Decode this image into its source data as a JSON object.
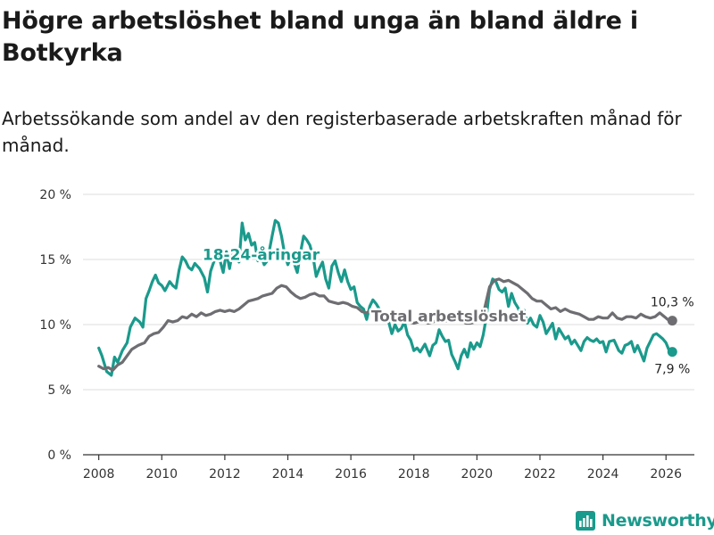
{
  "chart_data": {
    "type": "line",
    "title": "Högre arbetslöshet bland unga än bland äldre i Botkyrka",
    "subtitle": "Arbetssökande som andel av den registerbaserade arbetskraften månad för månad.",
    "ylim": [
      0,
      20
    ],
    "xlim": [
      2007.5,
      2026.9
    ],
    "y_ticks": [
      0,
      5,
      10,
      15,
      20
    ],
    "y_tick_labels": [
      "0 %",
      "5 %",
      "10 %",
      "15 %",
      "20 %"
    ],
    "x_ticks": [
      2008,
      2010,
      2012,
      2014,
      2016,
      2018,
      2020,
      2022,
      2024,
      2026
    ],
    "x_tick_labels": [
      "2008",
      "2010",
      "2012",
      "2014",
      "2016",
      "2018",
      "2020",
      "2022",
      "2024",
      "2026"
    ],
    "series": [
      {
        "name": "18-24-åringar",
        "color": "#1a9a8c",
        "points": [
          [
            2008.0,
            8.2
          ],
          [
            2008.1,
            7.6
          ],
          [
            2008.25,
            6.4
          ],
          [
            2008.4,
            6.1
          ],
          [
            2008.5,
            7.5
          ],
          [
            2008.6,
            7.1
          ],
          [
            2008.75,
            8.0
          ],
          [
            2008.9,
            8.6
          ],
          [
            2009.0,
            9.8
          ],
          [
            2009.15,
            10.5
          ],
          [
            2009.3,
            10.2
          ],
          [
            2009.4,
            9.8
          ],
          [
            2009.5,
            12.0
          ],
          [
            2009.6,
            12.6
          ],
          [
            2009.7,
            13.3
          ],
          [
            2009.8,
            13.8
          ],
          [
            2009.9,
            13.2
          ],
          [
            2010.0,
            13.0
          ],
          [
            2010.1,
            12.6
          ],
          [
            2010.25,
            13.3
          ],
          [
            2010.35,
            13.0
          ],
          [
            2010.45,
            12.8
          ],
          [
            2010.55,
            14.2
          ],
          [
            2010.65,
            15.2
          ],
          [
            2010.75,
            14.9
          ],
          [
            2010.85,
            14.4
          ],
          [
            2010.95,
            14.2
          ],
          [
            2011.05,
            14.7
          ],
          [
            2011.2,
            14.3
          ],
          [
            2011.35,
            13.6
          ],
          [
            2011.45,
            12.5
          ],
          [
            2011.55,
            14.1
          ],
          [
            2011.65,
            14.8
          ],
          [
            2011.75,
            15.2
          ],
          [
            2011.85,
            14.9
          ],
          [
            2011.95,
            14.0
          ],
          [
            2012.05,
            15.6
          ],
          [
            2012.15,
            14.3
          ],
          [
            2012.25,
            15.7
          ],
          [
            2012.35,
            15.5
          ],
          [
            2012.45,
            14.8
          ],
          [
            2012.55,
            17.8
          ],
          [
            2012.65,
            16.5
          ],
          [
            2012.75,
            17.0
          ],
          [
            2012.85,
            16.1
          ],
          [
            2012.95,
            16.3
          ],
          [
            2013.05,
            14.9
          ],
          [
            2013.15,
            15.3
          ],
          [
            2013.25,
            14.6
          ],
          [
            2013.35,
            14.9
          ],
          [
            2013.5,
            16.8
          ],
          [
            2013.6,
            18.0
          ],
          [
            2013.7,
            17.8
          ],
          [
            2013.8,
            16.8
          ],
          [
            2013.9,
            15.4
          ],
          [
            2014.0,
            14.6
          ],
          [
            2014.1,
            15.2
          ],
          [
            2014.2,
            14.7
          ],
          [
            2014.3,
            14.0
          ],
          [
            2014.4,
            15.5
          ],
          [
            2014.5,
            16.8
          ],
          [
            2014.6,
            16.5
          ],
          [
            2014.7,
            16.1
          ],
          [
            2014.8,
            15.2
          ],
          [
            2014.9,
            13.7
          ],
          [
            2015.0,
            14.3
          ],
          [
            2015.1,
            14.8
          ],
          [
            2015.2,
            13.5
          ],
          [
            2015.3,
            12.8
          ],
          [
            2015.4,
            14.5
          ],
          [
            2015.5,
            14.9
          ],
          [
            2015.6,
            14.0
          ],
          [
            2015.7,
            13.3
          ],
          [
            2015.8,
            14.2
          ],
          [
            2015.9,
            13.3
          ],
          [
            2016.0,
            12.7
          ],
          [
            2016.1,
            12.9
          ],
          [
            2016.2,
            11.7
          ],
          [
            2016.3,
            11.4
          ],
          [
            2016.4,
            11.2
          ],
          [
            2016.5,
            10.4
          ],
          [
            2016.6,
            11.4
          ],
          [
            2016.7,
            11.9
          ],
          [
            2016.8,
            11.6
          ],
          [
            2016.9,
            11.2
          ],
          [
            2017.0,
            10.8
          ],
          [
            2017.1,
            10.5
          ],
          [
            2017.2,
            10.2
          ],
          [
            2017.3,
            9.3
          ],
          [
            2017.4,
            10.0
          ],
          [
            2017.5,
            9.5
          ],
          [
            2017.6,
            9.7
          ],
          [
            2017.7,
            10.2
          ],
          [
            2017.8,
            9.2
          ],
          [
            2017.9,
            8.8
          ],
          [
            2018.0,
            8.0
          ],
          [
            2018.1,
            8.2
          ],
          [
            2018.2,
            7.9
          ],
          [
            2018.35,
            8.5
          ],
          [
            2018.5,
            7.6
          ],
          [
            2018.6,
            8.4
          ],
          [
            2018.7,
            8.6
          ],
          [
            2018.8,
            9.6
          ],
          [
            2018.9,
            9.1
          ],
          [
            2019.0,
            8.7
          ],
          [
            2019.1,
            8.8
          ],
          [
            2019.2,
            7.7
          ],
          [
            2019.3,
            7.2
          ],
          [
            2019.4,
            6.6
          ],
          [
            2019.5,
            7.6
          ],
          [
            2019.6,
            8.1
          ],
          [
            2019.7,
            7.5
          ],
          [
            2019.8,
            8.6
          ],
          [
            2019.9,
            8.1
          ],
          [
            2020.0,
            8.6
          ],
          [
            2020.1,
            8.3
          ],
          [
            2020.2,
            9.2
          ],
          [
            2020.3,
            10.6
          ],
          [
            2020.4,
            12.7
          ],
          [
            2020.5,
            13.5
          ],
          [
            2020.6,
            13.3
          ],
          [
            2020.7,
            12.7
          ],
          [
            2020.8,
            12.5
          ],
          [
            2020.9,
            12.8
          ],
          [
            2021.0,
            11.4
          ],
          [
            2021.1,
            12.4
          ],
          [
            2021.2,
            11.7
          ],
          [
            2021.3,
            11.3
          ],
          [
            2021.4,
            10.7
          ],
          [
            2021.5,
            11.1
          ],
          [
            2021.6,
            10.1
          ],
          [
            2021.7,
            10.5
          ],
          [
            2021.8,
            10.0
          ],
          [
            2021.9,
            9.8
          ],
          [
            2022.0,
            10.7
          ],
          [
            2022.1,
            10.2
          ],
          [
            2022.2,
            9.3
          ],
          [
            2022.3,
            9.7
          ],
          [
            2022.4,
            10.1
          ],
          [
            2022.5,
            8.9
          ],
          [
            2022.6,
            9.7
          ],
          [
            2022.7,
            9.3
          ],
          [
            2022.8,
            8.9
          ],
          [
            2022.9,
            9.1
          ],
          [
            2023.0,
            8.5
          ],
          [
            2023.1,
            8.8
          ],
          [
            2023.2,
            8.4
          ],
          [
            2023.3,
            8.0
          ],
          [
            2023.4,
            8.7
          ],
          [
            2023.5,
            9.0
          ],
          [
            2023.6,
            8.8
          ],
          [
            2023.7,
            8.7
          ],
          [
            2023.8,
            8.9
          ],
          [
            2023.9,
            8.6
          ],
          [
            2024.0,
            8.7
          ],
          [
            2024.1,
            7.9
          ],
          [
            2024.2,
            8.7
          ],
          [
            2024.35,
            8.8
          ],
          [
            2024.5,
            8.0
          ],
          [
            2024.6,
            7.8
          ],
          [
            2024.7,
            8.4
          ],
          [
            2024.8,
            8.5
          ],
          [
            2024.9,
            8.7
          ],
          [
            2025.0,
            7.9
          ],
          [
            2025.1,
            8.4
          ],
          [
            2025.2,
            7.8
          ],
          [
            2025.3,
            7.2
          ],
          [
            2025.4,
            8.2
          ],
          [
            2025.5,
            8.7
          ],
          [
            2025.6,
            9.2
          ],
          [
            2025.7,
            9.3
          ],
          [
            2025.8,
            9.1
          ],
          [
            2025.9,
            8.9
          ],
          [
            2026.0,
            8.6
          ],
          [
            2026.1,
            8.0
          ],
          [
            2026.2,
            7.9
          ]
        ],
        "end_label": "7,9 %",
        "inline_label": "18-24-åringar"
      },
      {
        "name": "Total arbetslöshet",
        "color": "#6e6e72",
        "points": [
          [
            2008.0,
            6.8
          ],
          [
            2008.15,
            6.6
          ],
          [
            2008.3,
            6.7
          ],
          [
            2008.45,
            6.5
          ],
          [
            2008.6,
            6.9
          ],
          [
            2008.75,
            7.1
          ],
          [
            2008.9,
            7.6
          ],
          [
            2009.05,
            8.1
          ],
          [
            2009.25,
            8.4
          ],
          [
            2009.45,
            8.6
          ],
          [
            2009.6,
            9.1
          ],
          [
            2009.75,
            9.3
          ],
          [
            2009.9,
            9.4
          ],
          [
            2010.05,
            9.8
          ],
          [
            2010.2,
            10.3
          ],
          [
            2010.35,
            10.2
          ],
          [
            2010.5,
            10.3
          ],
          [
            2010.65,
            10.6
          ],
          [
            2010.8,
            10.5
          ],
          [
            2010.95,
            10.8
          ],
          [
            2011.1,
            10.6
          ],
          [
            2011.25,
            10.9
          ],
          [
            2011.4,
            10.7
          ],
          [
            2011.55,
            10.8
          ],
          [
            2011.7,
            11.0
          ],
          [
            2011.85,
            11.1
          ],
          [
            2012.0,
            11.0
          ],
          [
            2012.15,
            11.1
          ],
          [
            2012.3,
            11.0
          ],
          [
            2012.45,
            11.2
          ],
          [
            2012.6,
            11.5
          ],
          [
            2012.75,
            11.8
          ],
          [
            2012.9,
            11.9
          ],
          [
            2013.05,
            12.0
          ],
          [
            2013.2,
            12.2
          ],
          [
            2013.35,
            12.3
          ],
          [
            2013.5,
            12.4
          ],
          [
            2013.65,
            12.8
          ],
          [
            2013.8,
            13.0
          ],
          [
            2013.95,
            12.9
          ],
          [
            2014.1,
            12.5
          ],
          [
            2014.25,
            12.2
          ],
          [
            2014.4,
            12.0
          ],
          [
            2014.55,
            12.1
          ],
          [
            2014.7,
            12.3
          ],
          [
            2014.85,
            12.4
          ],
          [
            2015.0,
            12.2
          ],
          [
            2015.15,
            12.2
          ],
          [
            2015.3,
            11.8
          ],
          [
            2015.45,
            11.7
          ],
          [
            2015.6,
            11.6
          ],
          [
            2015.75,
            11.7
          ],
          [
            2015.9,
            11.6
          ],
          [
            2016.05,
            11.4
          ],
          [
            2016.2,
            11.3
          ],
          [
            2016.35,
            11.0
          ],
          [
            2016.5,
            10.9
          ],
          [
            2016.65,
            11.1
          ],
          [
            2016.8,
            10.8
          ],
          [
            2016.95,
            11.0
          ],
          [
            2017.1,
            10.8
          ],
          [
            2017.25,
            10.7
          ],
          [
            2017.4,
            10.4
          ],
          [
            2017.55,
            10.5
          ],
          [
            2017.7,
            10.3
          ],
          [
            2017.85,
            10.2
          ],
          [
            2018.0,
            10.1
          ],
          [
            2018.15,
            10.2
          ],
          [
            2018.3,
            10.3
          ],
          [
            2018.45,
            10.1
          ],
          [
            2018.6,
            10.2
          ],
          [
            2018.75,
            10.3
          ],
          [
            2018.9,
            10.2
          ],
          [
            2019.05,
            10.3
          ],
          [
            2019.2,
            10.2
          ],
          [
            2019.35,
            10.4
          ],
          [
            2019.5,
            10.3
          ],
          [
            2019.65,
            10.1
          ],
          [
            2019.8,
            10.1
          ],
          [
            2019.95,
            10.2
          ],
          [
            2020.1,
            10.5
          ],
          [
            2020.25,
            11.3
          ],
          [
            2020.4,
            12.9
          ],
          [
            2020.55,
            13.4
          ],
          [
            2020.7,
            13.5
          ],
          [
            2020.85,
            13.3
          ],
          [
            2021.0,
            13.4
          ],
          [
            2021.15,
            13.2
          ],
          [
            2021.3,
            13.0
          ],
          [
            2021.45,
            12.7
          ],
          [
            2021.6,
            12.4
          ],
          [
            2021.75,
            12.0
          ],
          [
            2021.9,
            11.8
          ],
          [
            2022.05,
            11.8
          ],
          [
            2022.2,
            11.5
          ],
          [
            2022.35,
            11.2
          ],
          [
            2022.5,
            11.3
          ],
          [
            2022.65,
            11.0
          ],
          [
            2022.8,
            11.2
          ],
          [
            2022.95,
            11.0
          ],
          [
            2023.1,
            10.9
          ],
          [
            2023.25,
            10.8
          ],
          [
            2023.4,
            10.6
          ],
          [
            2023.55,
            10.4
          ],
          [
            2023.7,
            10.4
          ],
          [
            2023.85,
            10.6
          ],
          [
            2024.0,
            10.5
          ],
          [
            2024.15,
            10.5
          ],
          [
            2024.3,
            10.9
          ],
          [
            2024.45,
            10.5
          ],
          [
            2024.6,
            10.4
          ],
          [
            2024.75,
            10.6
          ],
          [
            2024.9,
            10.6
          ],
          [
            2025.05,
            10.5
          ],
          [
            2025.2,
            10.8
          ],
          [
            2025.35,
            10.6
          ],
          [
            2025.5,
            10.5
          ],
          [
            2025.65,
            10.6
          ],
          [
            2025.8,
            10.9
          ],
          [
            2025.95,
            10.6
          ],
          [
            2026.05,
            10.4
          ],
          [
            2026.2,
            10.3
          ]
        ],
        "end_label": "10,3 %",
        "inline_label": "Total arbetslöshet"
      }
    ]
  },
  "brand": {
    "name": "Newsworthy"
  }
}
